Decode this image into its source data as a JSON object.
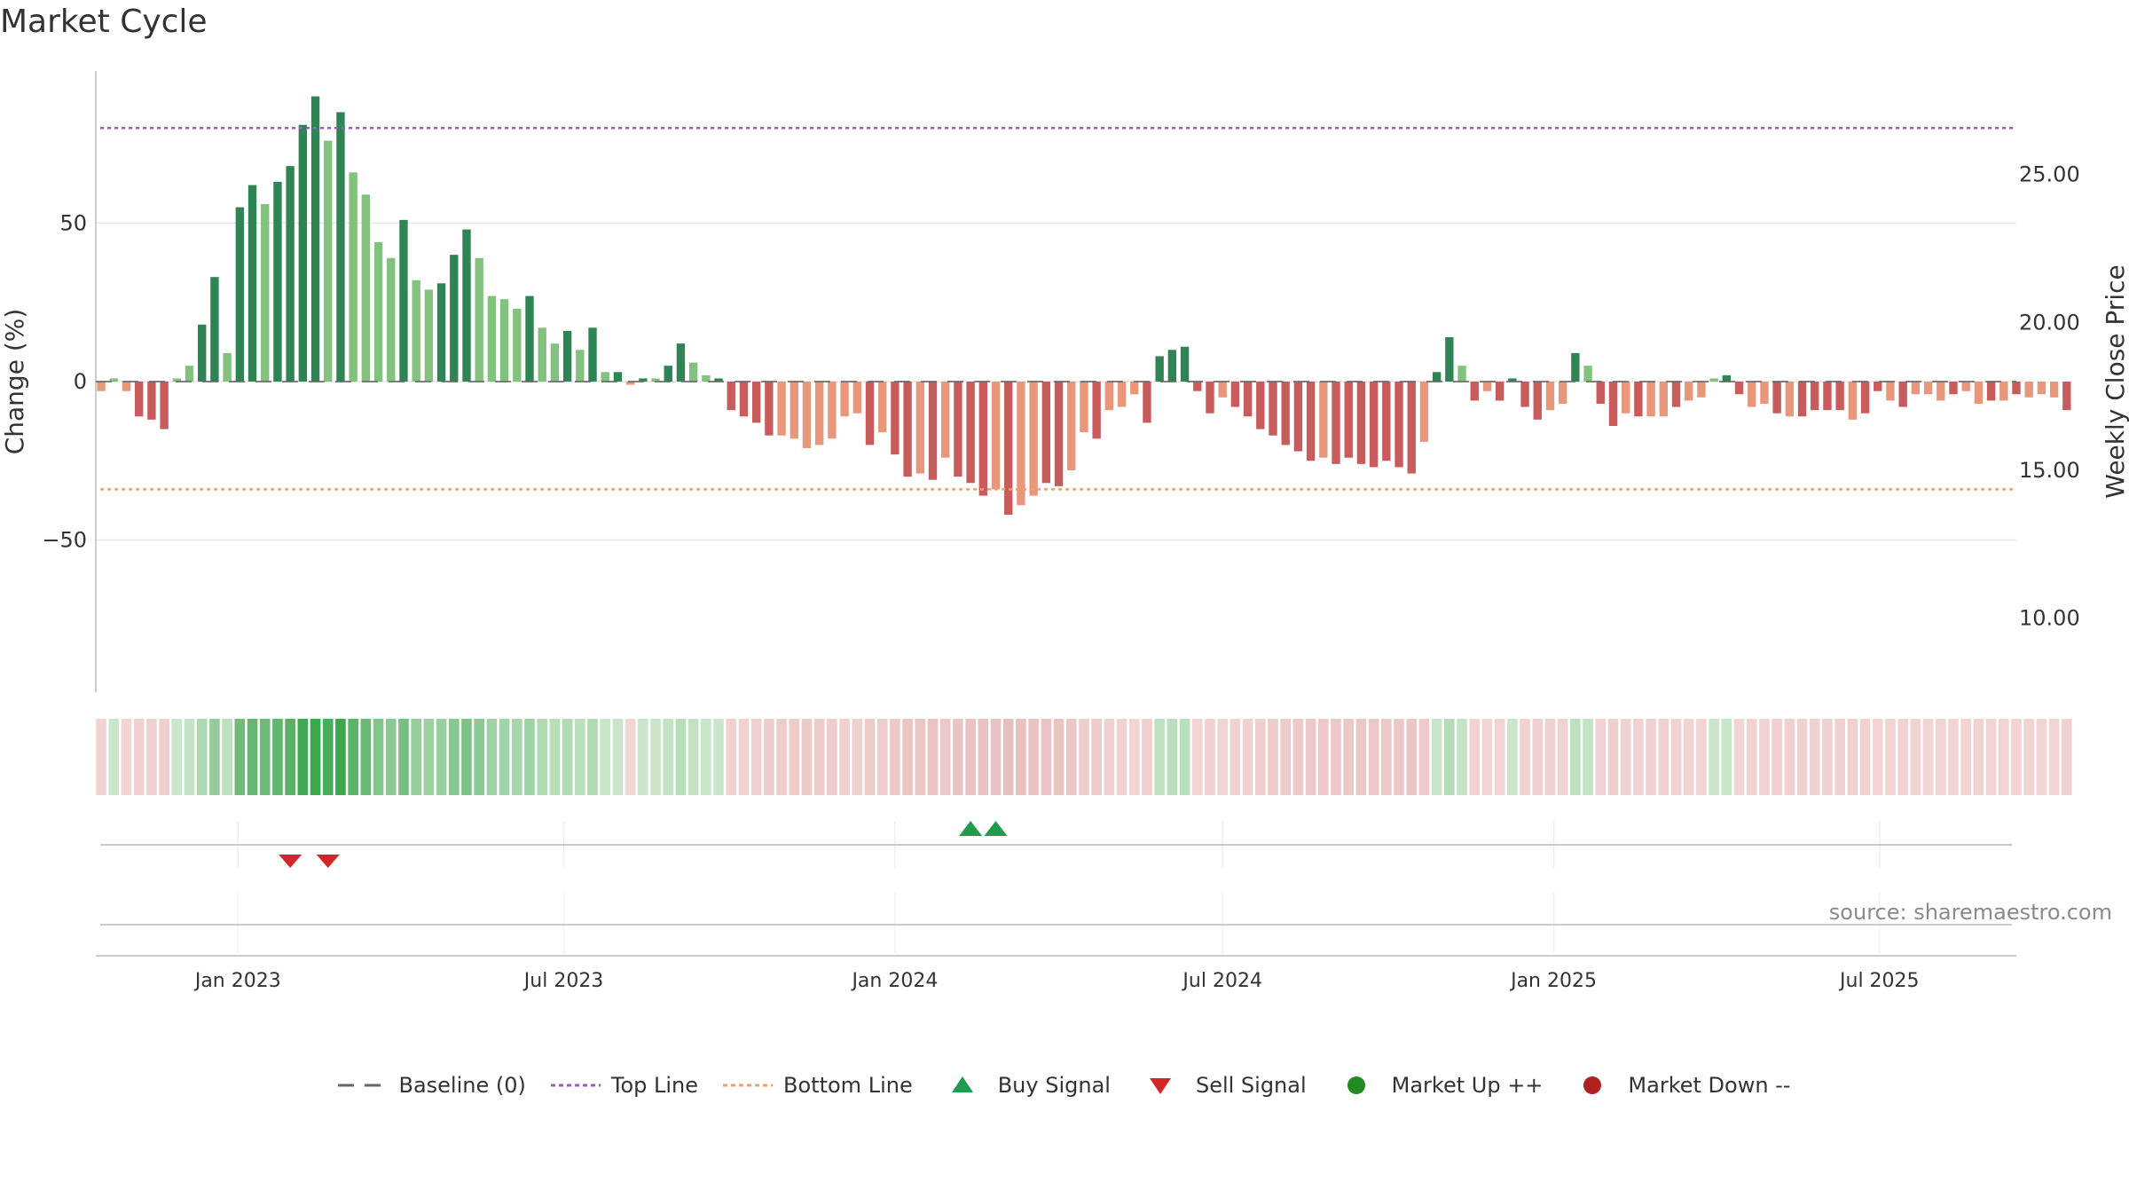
{
  "chart_data": {
    "type": "bar",
    "title": "Market Cycle",
    "ylabel": "Change (%)",
    "y2label": "Weekly Close Price",
    "ylim": [
      -98,
      98
    ],
    "y2lim": [
      7.5,
      28.5
    ],
    "yticks": [
      -50,
      0,
      50
    ],
    "yticklabels": [
      "−50",
      "0",
      "50"
    ],
    "y2ticks": [
      10,
      15,
      20,
      25
    ],
    "y2ticklabels": [
      "10.00",
      "15.00",
      "20.00",
      "25.00"
    ],
    "x_start": "2022-10-17",
    "xlim": [
      "2022-10-14",
      "2025-09-15"
    ],
    "xticks": [
      "2023-01-01",
      "2023-07-01",
      "2024-01-01",
      "2024-07-01",
      "2025-01-01",
      "2025-07-01"
    ],
    "xticklabels": [
      "Jan 2023",
      "Jul 2023",
      "Jan 2024",
      "Jul 2024",
      "Jan 2025",
      "Jul 2025"
    ],
    "top_line": 80,
    "bottom_line": -34,
    "baseline": 0,
    "values": [
      -3,
      1,
      -3,
      -11,
      -12,
      -15,
      1,
      5,
      18,
      33,
      9,
      55,
      62,
      56,
      63,
      68,
      81,
      90,
      76,
      85,
      66,
      59,
      44,
      39,
      51,
      32,
      29,
      31,
      40,
      48,
      39,
      27,
      26,
      23,
      27,
      17,
      12,
      16,
      10,
      17,
      3,
      3,
      -1,
      1,
      1,
      5,
      12,
      6,
      2,
      1,
      -9,
      -11,
      -13,
      -17,
      -17,
      -18,
      -21,
      -20,
      -18,
      -11,
      -10,
      -20,
      -16,
      -23,
      -30,
      -29,
      -31,
      -24,
      -30,
      -32,
      -36,
      -34,
      -42,
      -39,
      -36,
      -32,
      -33,
      -28,
      -16,
      -18,
      -9,
      -8,
      -4,
      -13,
      8,
      10,
      11,
      -3,
      -10,
      -5,
      -8,
      -11,
      -15,
      -17,
      -20,
      -22,
      -25,
      -24,
      -26,
      -24,
      -26,
      -27,
      -25,
      -27,
      -29,
      -19,
      3,
      14,
      5,
      -6,
      -3,
      -6,
      1,
      -8,
      -12,
      -9,
      -7,
      9,
      5,
      -7,
      -14,
      -10,
      -11,
      -11,
      -11,
      -8,
      -6,
      -5,
      1,
      2,
      -4,
      -8,
      -7,
      -10,
      -11,
      -11,
      -9,
      -9,
      -9,
      -12,
      -10,
      -3,
      -6,
      -8,
      -4,
      -4,
      -6,
      -4,
      -3,
      -7,
      -6,
      -6,
      -4,
      -5,
      -4,
      -5,
      -9
    ],
    "shades": [
      0,
      0,
      0,
      1,
      1,
      1,
      0,
      0,
      1,
      1,
      0,
      1,
      1,
      0,
      1,
      1,
      1,
      1,
      0,
      1,
      0,
      0,
      0,
      0,
      1,
      0,
      0,
      1,
      1,
      1,
      0,
      0,
      0,
      0,
      1,
      0,
      0,
      1,
      0,
      1,
      0,
      1,
      0,
      1,
      0,
      1,
      1,
      0,
      0,
      1,
      1,
      1,
      1,
      1,
      0,
      0,
      0,
      0,
      0,
      0,
      0,
      1,
      0,
      1,
      1,
      0,
      1,
      0,
      1,
      1,
      1,
      0,
      1,
      0,
      0,
      1,
      1,
      0,
      0,
      1,
      0,
      0,
      0,
      1,
      1,
      1,
      1,
      1,
      1,
      0,
      1,
      1,
      1,
      1,
      1,
      1,
      1,
      0,
      1,
      1,
      1,
      1,
      1,
      1,
      1,
      0,
      1,
      1,
      0,
      1,
      0,
      1,
      1,
      1,
      1,
      0,
      0,
      1,
      0,
      1,
      1,
      0,
      1,
      0,
      0,
      1,
      0,
      0,
      0,
      1,
      1,
      0,
      0,
      1,
      0,
      1,
      1,
      1,
      1,
      0,
      1,
      1,
      0,
      1,
      0,
      0,
      0,
      1,
      0,
      0,
      1,
      0,
      1,
      0,
      0,
      0,
      1,
      0,
      1
    ],
    "buy_signals": [
      69,
      71
    ],
    "sell_signals": [
      15,
      18
    ],
    "legend_position": "bottom-center",
    "grid": true,
    "colors": {
      "up_dark": "#2e8453",
      "up_light": "#82c27e",
      "down_dark": "#c85c5c",
      "down_light": "#e8977b",
      "top_line": "#9b59c9",
      "bottom_line": "#f0a060",
      "buy": "#1f9c4e",
      "sell": "#d32626",
      "market_up": "#228b22",
      "market_down": "#b22222"
    }
  },
  "legend": {
    "baseline": "Baseline (0)",
    "top_line": "Top Line",
    "bottom_line": "Bottom Line",
    "buy_signal": "Buy Signal",
    "sell_signal": "Sell Signal",
    "market_up": "Market Up ++",
    "market_down": "Market Down --"
  },
  "source": "source: sharemaestro.com"
}
